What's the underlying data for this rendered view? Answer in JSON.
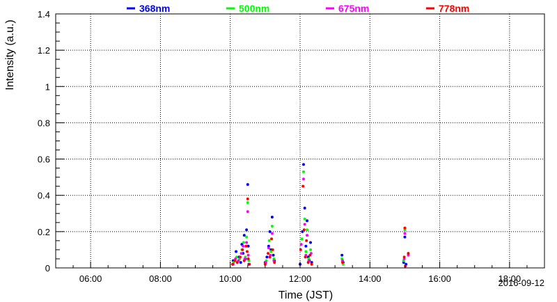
{
  "chart_data": {
    "type": "scatter",
    "xlabel": "Time (JST)",
    "ylabel": "Intensity (a.u.)",
    "date_label": "2016-09-12",
    "xlim": [
      "05:00",
      "19:00"
    ],
    "ylim": [
      0,
      1.4
    ],
    "x_ticks": [
      "06:00",
      "08:00",
      "10:00",
      "12:00",
      "14:00",
      "16:00",
      "18:00"
    ],
    "y_ticks": [
      "0",
      "0.2",
      "0.4",
      "0.6",
      "0.8",
      "1",
      "1.2",
      "1.4"
    ],
    "grid": true,
    "legend_position": "top",
    "series": [
      {
        "name": "368nm",
        "color": "#0000ff",
        "points": [
          [
            "10:05",
            0.04
          ],
          [
            "10:10",
            0.09
          ],
          [
            "10:15",
            0.06
          ],
          [
            "10:18",
            0.03
          ],
          [
            "10:20",
            0.13
          ],
          [
            "10:22",
            0.08
          ],
          [
            "10:24",
            0.18
          ],
          [
            "10:26",
            0.05
          ],
          [
            "10:28",
            0.21
          ],
          [
            "10:30",
            0.46
          ],
          [
            "10:31",
            0.12
          ],
          [
            "10:32",
            0.02
          ],
          [
            "11:00",
            0.03
          ],
          [
            "11:03",
            0.06
          ],
          [
            "11:06",
            0.12
          ],
          [
            "11:08",
            0.2
          ],
          [
            "11:10",
            0.1
          ],
          [
            "11:12",
            0.28
          ],
          [
            "11:14",
            0.07
          ],
          [
            "11:16",
            0.04
          ],
          [
            "12:00",
            0.02
          ],
          [
            "12:04",
            0.2
          ],
          [
            "12:06",
            0.57
          ],
          [
            "12:08",
            0.33
          ],
          [
            "12:10",
            0.12
          ],
          [
            "12:12",
            0.26
          ],
          [
            "12:14",
            0.06
          ],
          [
            "12:16",
            0.04
          ],
          [
            "12:18",
            0.14
          ],
          [
            "12:20",
            0.03
          ],
          [
            "13:12",
            0.07
          ],
          [
            "13:14",
            0.03
          ],
          [
            "14:58",
            0.03
          ],
          [
            "15:00",
            0.17
          ],
          [
            "15:02",
            0.02
          ]
        ]
      },
      {
        "name": "500nm",
        "color": "#00ff00",
        "points": [
          [
            "10:06",
            0.03
          ],
          [
            "10:11",
            0.06
          ],
          [
            "10:16",
            0.05
          ],
          [
            "10:20",
            0.1
          ],
          [
            "10:23",
            0.14
          ],
          [
            "10:26",
            0.06
          ],
          [
            "10:28",
            0.17
          ],
          [
            "10:30",
            0.36
          ],
          [
            "10:32",
            0.04
          ],
          [
            "11:02",
            0.04
          ],
          [
            "11:07",
            0.15
          ],
          [
            "11:10",
            0.09
          ],
          [
            "11:12",
            0.23
          ],
          [
            "11:15",
            0.05
          ],
          [
            "12:03",
            0.16
          ],
          [
            "12:06",
            0.53
          ],
          [
            "12:08",
            0.27
          ],
          [
            "12:10",
            0.09
          ],
          [
            "12:12",
            0.21
          ],
          [
            "12:15",
            0.05
          ],
          [
            "12:18",
            0.1
          ],
          [
            "13:12",
            0.05
          ],
          [
            "13:14",
            0.02
          ],
          [
            "14:58",
            0.04
          ],
          [
            "15:00",
            0.21
          ],
          [
            "15:06",
            0.08
          ]
        ]
      },
      {
        "name": "675nm",
        "color": "#ff00ff",
        "points": [
          [
            "10:05",
            0.02
          ],
          [
            "10:09",
            0.05
          ],
          [
            "10:14",
            0.04
          ],
          [
            "10:19",
            0.08
          ],
          [
            "10:22",
            0.12
          ],
          [
            "10:25",
            0.05
          ],
          [
            "10:28",
            0.14
          ],
          [
            "10:30",
            0.31
          ],
          [
            "10:31",
            0.07
          ],
          [
            "11:01",
            0.03
          ],
          [
            "11:06",
            0.11
          ],
          [
            "11:09",
            0.07
          ],
          [
            "11:12",
            0.19
          ],
          [
            "11:15",
            0.04
          ],
          [
            "12:02",
            0.13
          ],
          [
            "12:06",
            0.49
          ],
          [
            "12:08",
            0.24
          ],
          [
            "12:10",
            0.07
          ],
          [
            "12:12",
            0.18
          ],
          [
            "12:15",
            0.04
          ],
          [
            "12:19",
            0.08
          ],
          [
            "13:13",
            0.04
          ],
          [
            "14:59",
            0.05
          ],
          [
            "15:00",
            0.19
          ],
          [
            "15:06",
            0.07
          ]
        ]
      },
      {
        "name": "778nm",
        "color": "#ff0000",
        "points": [
          [
            "10:04",
            0.02
          ],
          [
            "10:08",
            0.04
          ],
          [
            "10:12",
            0.03
          ],
          [
            "10:17",
            0.06
          ],
          [
            "10:21",
            0.1
          ],
          [
            "10:24",
            0.04
          ],
          [
            "10:27",
            0.12
          ],
          [
            "10:29",
            0.09
          ],
          [
            "10:30",
            0.38
          ],
          [
            "10:31",
            0.05
          ],
          [
            "10:33",
            0.02
          ],
          [
            "11:00",
            0.02
          ],
          [
            "11:05",
            0.08
          ],
          [
            "11:08",
            0.06
          ],
          [
            "11:11",
            0.16
          ],
          [
            "11:13",
            0.1
          ],
          [
            "11:16",
            0.03
          ],
          [
            "12:01",
            0.1
          ],
          [
            "12:05",
            0.45
          ],
          [
            "12:07",
            0.21
          ],
          [
            "12:09",
            0.06
          ],
          [
            "12:11",
            0.15
          ],
          [
            "12:14",
            0.03
          ],
          [
            "12:17",
            0.07
          ],
          [
            "12:20",
            0.02
          ],
          [
            "13:13",
            0.03
          ],
          [
            "14:59",
            0.06
          ],
          [
            "15:00",
            0.22
          ],
          [
            "15:01",
            0.01
          ],
          [
            "15:06",
            0.08
          ]
        ]
      }
    ]
  }
}
